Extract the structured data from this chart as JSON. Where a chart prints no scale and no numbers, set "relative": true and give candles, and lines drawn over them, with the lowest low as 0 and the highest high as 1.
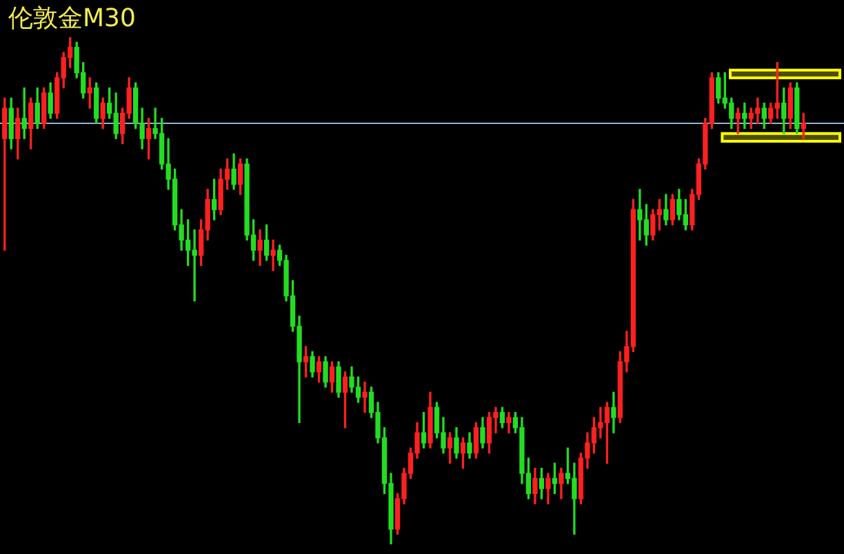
{
  "chart_data": {
    "type": "candlestick",
    "title": "伦敦金M30",
    "relative": true,
    "categories": [
      null,
      null,
      null,
      null,
      null,
      null,
      null,
      null,
      null,
      null,
      null,
      null,
      null,
      null,
      null,
      null,
      null,
      null,
      null,
      null,
      null,
      null,
      null,
      null,
      null,
      null,
      null,
      null,
      null,
      null,
      null,
      null,
      null,
      null,
      null,
      null,
      null,
      null,
      null,
      null,
      null,
      null,
      null,
      null,
      null,
      null,
      null,
      null,
      null,
      null,
      null,
      null,
      null,
      null,
      null,
      null,
      null,
      null,
      null,
      null,
      null,
      null,
      null,
      null,
      null,
      null,
      null,
      null,
      null,
      null,
      null,
      null,
      null,
      null,
      null,
      null,
      null,
      null,
      null,
      null,
      null,
      null,
      null,
      null,
      null,
      null,
      null,
      null,
      null,
      null,
      null,
      null,
      null,
      null,
      null,
      null,
      null,
      null,
      null,
      null,
      null,
      null,
      null,
      null,
      null,
      null,
      null,
      null,
      null,
      null,
      null,
      null,
      null,
      null,
      null,
      null,
      null,
      null,
      null,
      null,
      null,
      null,
      null
    ],
    "ohlc": [
      [
        0.8,
        0.88,
        0.58,
        0.86
      ],
      [
        0.86,
        0.88,
        0.78,
        0.8
      ],
      [
        0.8,
        0.86,
        0.76,
        0.84
      ],
      [
        0.84,
        0.9,
        0.8,
        0.82
      ],
      [
        0.82,
        0.88,
        0.78,
        0.87
      ],
      [
        0.87,
        0.9,
        0.82,
        0.83
      ],
      [
        0.83,
        0.9,
        0.82,
        0.89
      ],
      [
        0.89,
        0.91,
        0.84,
        0.85
      ],
      [
        0.85,
        0.93,
        0.84,
        0.92
      ],
      [
        0.92,
        0.97,
        0.9,
        0.96
      ],
      [
        0.96,
        1.0,
        0.94,
        0.98
      ],
      [
        0.98,
        0.99,
        0.92,
        0.93
      ],
      [
        0.93,
        0.95,
        0.88,
        0.89
      ],
      [
        0.89,
        0.92,
        0.86,
        0.9
      ],
      [
        0.9,
        0.91,
        0.83,
        0.84
      ],
      [
        0.84,
        0.88,
        0.82,
        0.87
      ],
      [
        0.87,
        0.9,
        0.84,
        0.85
      ],
      [
        0.85,
        0.89,
        0.8,
        0.81
      ],
      [
        0.81,
        0.86,
        0.79,
        0.85
      ],
      [
        0.85,
        0.92,
        0.84,
        0.9
      ],
      [
        0.9,
        0.91,
        0.82,
        0.83
      ],
      [
        0.83,
        0.86,
        0.78,
        0.8
      ],
      [
        0.8,
        0.84,
        0.76,
        0.82
      ],
      [
        0.82,
        0.86,
        0.8,
        0.81
      ],
      [
        0.81,
        0.84,
        0.74,
        0.75
      ],
      [
        0.75,
        0.8,
        0.7,
        0.72
      ],
      [
        0.72,
        0.74,
        0.62,
        0.63
      ],
      [
        0.63,
        0.66,
        0.58,
        0.6
      ],
      [
        0.6,
        0.64,
        0.55,
        0.58
      ],
      [
        0.58,
        0.62,
        0.48,
        0.57
      ],
      [
        0.57,
        0.64,
        0.55,
        0.62
      ],
      [
        0.62,
        0.7,
        0.6,
        0.68
      ],
      [
        0.68,
        0.72,
        0.64,
        0.66
      ],
      [
        0.66,
        0.74,
        0.65,
        0.72
      ],
      [
        0.72,
        0.76,
        0.7,
        0.74
      ],
      [
        0.74,
        0.77,
        0.7,
        0.71
      ],
      [
        0.71,
        0.76,
        0.69,
        0.75
      ],
      [
        0.75,
        0.76,
        0.6,
        0.61
      ],
      [
        0.61,
        0.64,
        0.56,
        0.58
      ],
      [
        0.58,
        0.62,
        0.55,
        0.6
      ],
      [
        0.6,
        0.63,
        0.56,
        0.57
      ],
      [
        0.57,
        0.6,
        0.54,
        0.58
      ],
      [
        0.58,
        0.59,
        0.55,
        0.56
      ],
      [
        0.56,
        0.57,
        0.48,
        0.49
      ],
      [
        0.49,
        0.52,
        0.42,
        0.43
      ],
      [
        0.43,
        0.45,
        0.24,
        0.36
      ],
      [
        0.36,
        0.39,
        0.33,
        0.37
      ],
      [
        0.37,
        0.38,
        0.33,
        0.34
      ],
      [
        0.34,
        0.37,
        0.32,
        0.36
      ],
      [
        0.36,
        0.37,
        0.31,
        0.32
      ],
      [
        0.32,
        0.36,
        0.3,
        0.35
      ],
      [
        0.35,
        0.36,
        0.29,
        0.3
      ],
      [
        0.3,
        0.34,
        0.23,
        0.33
      ],
      [
        0.33,
        0.35,
        0.3,
        0.31
      ],
      [
        0.31,
        0.33,
        0.28,
        0.29
      ],
      [
        0.29,
        0.32,
        0.26,
        0.3
      ],
      [
        0.3,
        0.31,
        0.25,
        0.26
      ],
      [
        0.26,
        0.28,
        0.2,
        0.21
      ],
      [
        0.21,
        0.23,
        0.1,
        0.12
      ],
      [
        0.12,
        0.14,
        0.0,
        0.03
      ],
      [
        0.03,
        0.1,
        0.02,
        0.09
      ],
      [
        0.09,
        0.15,
        0.08,
        0.14
      ],
      [
        0.14,
        0.19,
        0.13,
        0.18
      ],
      [
        0.18,
        0.24,
        0.17,
        0.22
      ],
      [
        0.22,
        0.26,
        0.19,
        0.2
      ],
      [
        0.2,
        0.3,
        0.19,
        0.27
      ],
      [
        0.27,
        0.28,
        0.21,
        0.22
      ],
      [
        0.22,
        0.25,
        0.18,
        0.19
      ],
      [
        0.19,
        0.22,
        0.16,
        0.21
      ],
      [
        0.21,
        0.23,
        0.17,
        0.18
      ],
      [
        0.18,
        0.21,
        0.15,
        0.2
      ],
      [
        0.2,
        0.22,
        0.17,
        0.18
      ],
      [
        0.18,
        0.24,
        0.17,
        0.23
      ],
      [
        0.23,
        0.25,
        0.19,
        0.2
      ],
      [
        0.2,
        0.26,
        0.18,
        0.25
      ],
      [
        0.25,
        0.27,
        0.22,
        0.26
      ],
      [
        0.26,
        0.27,
        0.23,
        0.24
      ],
      [
        0.24,
        0.26,
        0.22,
        0.25
      ],
      [
        0.25,
        0.26,
        0.22,
        0.23
      ],
      [
        0.23,
        0.25,
        0.12,
        0.14
      ],
      [
        0.14,
        0.17,
        0.09,
        0.1
      ],
      [
        0.1,
        0.15,
        0.08,
        0.13
      ],
      [
        0.13,
        0.15,
        0.09,
        0.11
      ],
      [
        0.11,
        0.14,
        0.08,
        0.13
      ],
      [
        0.13,
        0.16,
        0.1,
        0.12
      ],
      [
        0.12,
        0.15,
        0.09,
        0.14
      ],
      [
        0.14,
        0.19,
        0.12,
        0.13
      ],
      [
        0.13,
        0.16,
        0.02,
        0.09
      ],
      [
        0.09,
        0.18,
        0.08,
        0.17
      ],
      [
        0.17,
        0.22,
        0.15,
        0.2
      ],
      [
        0.2,
        0.25,
        0.18,
        0.23
      ],
      [
        0.23,
        0.27,
        0.21,
        0.24
      ],
      [
        0.24,
        0.28,
        0.16,
        0.27
      ],
      [
        0.27,
        0.3,
        0.22,
        0.25
      ],
      [
        0.25,
        0.38,
        0.24,
        0.36
      ],
      [
        0.36,
        0.42,
        0.34,
        0.39
      ],
      [
        0.39,
        0.68,
        0.38,
        0.66
      ],
      [
        0.66,
        0.7,
        0.6,
        0.64
      ],
      [
        0.64,
        0.67,
        0.59,
        0.61
      ],
      [
        0.61,
        0.66,
        0.6,
        0.65
      ],
      [
        0.65,
        0.68,
        0.62,
        0.66
      ],
      [
        0.66,
        0.69,
        0.63,
        0.64
      ],
      [
        0.64,
        0.69,
        0.63,
        0.68
      ],
      [
        0.68,
        0.7,
        0.64,
        0.65
      ],
      [
        0.65,
        0.68,
        0.62,
        0.63
      ],
      [
        0.63,
        0.7,
        0.62,
        0.69
      ],
      [
        0.69,
        0.76,
        0.68,
        0.75
      ],
      [
        0.75,
        0.84,
        0.74,
        0.83
      ],
      [
        0.83,
        0.93,
        0.82,
        0.92
      ],
      [
        0.92,
        0.93,
        0.87,
        0.88
      ],
      [
        0.88,
        0.93,
        0.86,
        0.87
      ],
      [
        0.87,
        0.88,
        0.82,
        0.84
      ],
      [
        0.84,
        0.86,
        0.81,
        0.85
      ],
      [
        0.85,
        0.87,
        0.82,
        0.84
      ],
      [
        0.84,
        0.86,
        0.82,
        0.85
      ],
      [
        0.85,
        0.88,
        0.83,
        0.86
      ],
      [
        0.86,
        0.87,
        0.82,
        0.84
      ],
      [
        0.84,
        0.87,
        0.83,
        0.86
      ],
      [
        0.86,
        0.95,
        0.84,
        0.87
      ],
      [
        0.87,
        0.9,
        0.81,
        0.84
      ],
      [
        0.84,
        0.91,
        0.82,
        0.9
      ],
      [
        0.9,
        0.91,
        0.81,
        0.82
      ],
      [
        0.82,
        0.85,
        0.8,
        0.83
      ]
    ],
    "colors": [
      "#ff2020",
      "#22dd22",
      "#ff2020",
      "#22dd22",
      "#ff2020",
      "#22dd22",
      "#ff2020",
      "#22dd22",
      "#ff2020",
      "#ff2020",
      "#ff2020",
      "#22dd22",
      "#22dd22",
      "#ff2020",
      "#22dd22",
      "#ff2020",
      "#22dd22",
      "#22dd22",
      "#ff2020",
      "#ff2020",
      "#22dd22",
      "#22dd22",
      "#ff2020",
      "#22dd22",
      "#22dd22",
      "#22dd22",
      "#22dd22",
      "#22dd22",
      "#22dd22",
      "#22dd22",
      "#ff2020",
      "#ff2020",
      "#22dd22",
      "#ff2020",
      "#ff2020",
      "#22dd22",
      "#ff2020",
      "#22dd22",
      "#22dd22",
      "#ff2020",
      "#22dd22",
      "#ff2020",
      "#22dd22",
      "#22dd22",
      "#22dd22",
      "#22dd22",
      "#ff2020",
      "#22dd22",
      "#ff2020",
      "#22dd22",
      "#ff2020",
      "#22dd22",
      "#ff2020",
      "#22dd22",
      "#22dd22",
      "#ff2020",
      "#22dd22",
      "#22dd22",
      "#22dd22",
      "#22dd22",
      "#ff2020",
      "#ff2020",
      "#ff2020",
      "#ff2020",
      "#22dd22",
      "#ff2020",
      "#22dd22",
      "#22dd22",
      "#ff2020",
      "#22dd22",
      "#ff2020",
      "#22dd22",
      "#ff2020",
      "#22dd22",
      "#ff2020",
      "#ff2020",
      "#22dd22",
      "#ff2020",
      "#22dd22",
      "#22dd22",
      "#22dd22",
      "#ff2020",
      "#22dd22",
      "#ff2020",
      "#22dd22",
      "#ff2020",
      "#22dd22",
      "#22dd22",
      "#ff2020",
      "#ff2020",
      "#ff2020",
      "#ff2020",
      "#ff2020",
      "#22dd22",
      "#ff2020",
      "#ff2020",
      "#ff2020",
      "#22dd22",
      "#22dd22",
      "#ff2020",
      "#ff2020",
      "#22dd22",
      "#ff2020",
      "#22dd22",
      "#22dd22",
      "#ff2020",
      "#ff2020",
      "#ff2020",
      "#ff2020",
      "#22dd22",
      "#22dd22",
      "#22dd22",
      "#ff2020",
      "#22dd22",
      "#ff2020",
      "#ff2020",
      "#22dd22",
      "#ff2020",
      "#ff2020",
      "#22dd22",
      "#ff2020",
      "#22dd22",
      "#ff2020"
    ],
    "ref_lines": [
      {
        "axis": "y",
        "value": 0.83,
        "color": "#8fb4d8"
      }
    ],
    "bands": [
      {
        "axis": "y",
        "from": 0.92,
        "to": 0.935,
        "color": "#ffff00"
      },
      {
        "axis": "y",
        "from": 0.795,
        "to": 0.81,
        "color": "#ffff00"
      }
    ]
  }
}
